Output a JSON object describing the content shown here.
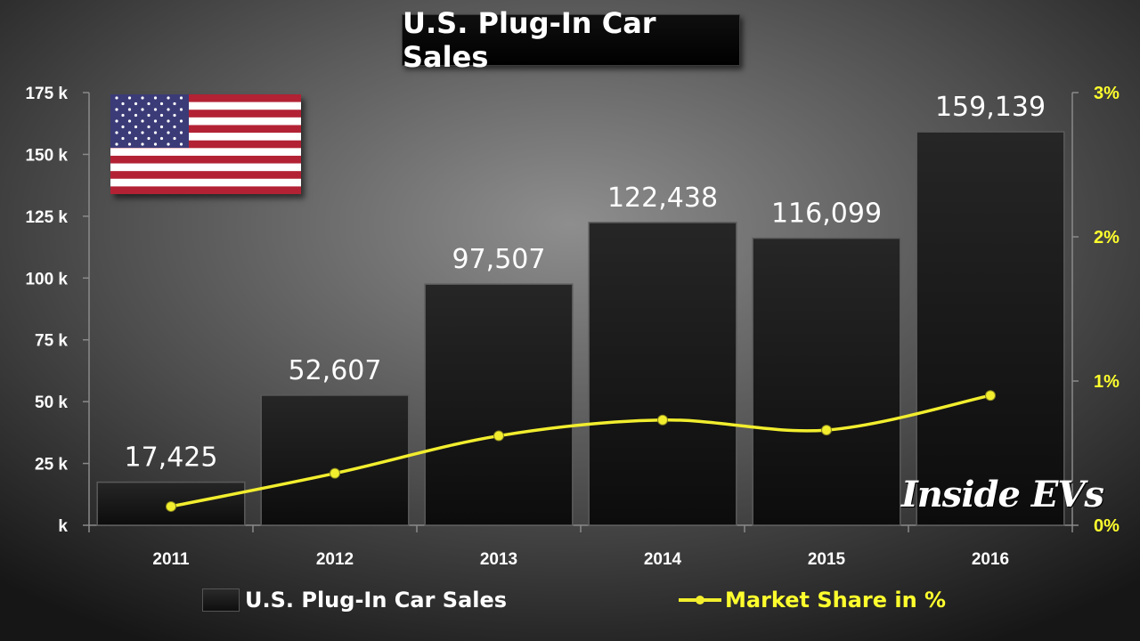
{
  "chart_data": {
    "type": "bar",
    "title": "U.S. Plug-In Car Sales",
    "categories": [
      "2011",
      "2012",
      "2013",
      "2014",
      "2015",
      "2016"
    ],
    "series": [
      {
        "name": "U.S. Plug-In Car Sales",
        "type": "bar",
        "axis": "left",
        "values": [
          17425,
          52607,
          97507,
          122438,
          116099,
          159139
        ],
        "labels": [
          "17,425",
          "52,607",
          "97,507",
          "122,438",
          "116,099",
          "159,139"
        ]
      },
      {
        "name": "Market Share in %",
        "type": "line",
        "axis": "right",
        "values": [
          0.13,
          0.36,
          0.62,
          0.73,
          0.66,
          0.9
        ]
      }
    ],
    "y_left": {
      "lim": [
        0,
        175000
      ],
      "ticks": [
        0,
        25000,
        50000,
        75000,
        100000,
        125000,
        150000,
        175000
      ],
      "tick_labels": [
        "k",
        "25 k",
        "50 k",
        "75 k",
        "100 k",
        "125 k",
        "150 k",
        "175 k"
      ]
    },
    "y_right": {
      "lim": [
        0,
        3
      ],
      "ticks": [
        0,
        1,
        2,
        3
      ],
      "tick_labels": [
        "0%",
        "1%",
        "2%",
        "3%"
      ]
    },
    "grid": false,
    "legend_position": "bottom"
  },
  "watermark": "Inside EVs",
  "colors": {
    "bar_fill": "#161616",
    "line": "#f2ee2e",
    "right_axis_text": "#ffff2e",
    "left_axis_text": "#ffffff"
  },
  "flag": "us-flag"
}
